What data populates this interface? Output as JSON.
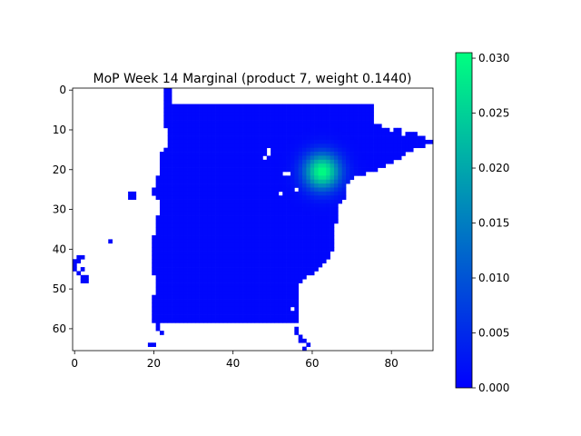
{
  "chart_data": {
    "type": "heatmap",
    "title": "MoP Week 14 Marginal (product 7, weight 0.1440)",
    "xlabel": "",
    "ylabel": "",
    "x_range": [
      -0.5,
      90.5
    ],
    "y_range": [
      65.5,
      -0.5
    ],
    "x_ticks": [
      0,
      20,
      40,
      60,
      80
    ],
    "y_ticks": [
      0,
      10,
      20,
      30,
      40,
      50,
      60
    ],
    "colormap": "winter",
    "colormap_low": "#0000ff",
    "colormap_high": "#00ff80",
    "missing_color": "#ffffff",
    "value_range": [
      0.0,
      0.0305
    ],
    "colorbar_ticks": [
      "0.000",
      "0.005",
      "0.010",
      "0.015",
      "0.020",
      "0.025",
      "0.030"
    ],
    "colorbar_tick_values": [
      0.0,
      0.005,
      0.01,
      0.015,
      0.02,
      0.025,
      0.03
    ],
    "grid": false,
    "background_value": 0.0008,
    "main_region_rows": [
      [
        4,
        23,
        75
      ],
      [
        5,
        23,
        75
      ],
      [
        6,
        23,
        75
      ],
      [
        7,
        23,
        75
      ],
      [
        8,
        23,
        75
      ],
      [
        9,
        23,
        77
      ],
      [
        10,
        24,
        82
      ],
      [
        11,
        24,
        86
      ],
      [
        12,
        24,
        88
      ],
      [
        13,
        24,
        90
      ],
      [
        14,
        24,
        88
      ],
      [
        15,
        23,
        85
      ],
      [
        16,
        22,
        83
      ],
      [
        17,
        22,
        82
      ],
      [
        18,
        22,
        80
      ],
      [
        19,
        22,
        78
      ],
      [
        20,
        22,
        76
      ],
      [
        21,
        22,
        73
      ],
      [
        22,
        21,
        70
      ],
      [
        23,
        21,
        69
      ],
      [
        24,
        21,
        68
      ],
      [
        25,
        20,
        68
      ],
      [
        26,
        20,
        68
      ],
      [
        27,
        21,
        68
      ],
      [
        28,
        22,
        67
      ],
      [
        29,
        22,
        66
      ],
      [
        30,
        22,
        66
      ],
      [
        31,
        22,
        66
      ],
      [
        32,
        21,
        66
      ],
      [
        33,
        21,
        66
      ],
      [
        34,
        21,
        65
      ],
      [
        35,
        21,
        65
      ],
      [
        36,
        21,
        65
      ],
      [
        37,
        20,
        65
      ],
      [
        38,
        20,
        65
      ],
      [
        39,
        20,
        65
      ],
      [
        40,
        20,
        65
      ],
      [
        41,
        20,
        64
      ],
      [
        42,
        20,
        64
      ],
      [
        43,
        20,
        63
      ],
      [
        44,
        20,
        62
      ],
      [
        45,
        20,
        61
      ],
      [
        46,
        20,
        60
      ],
      [
        47,
        21,
        58
      ],
      [
        48,
        21,
        57
      ],
      [
        49,
        21,
        56
      ],
      [
        50,
        21,
        56
      ],
      [
        51,
        21,
        56
      ],
      [
        52,
        20,
        56
      ],
      [
        53,
        20,
        56
      ],
      [
        54,
        20,
        56
      ],
      [
        55,
        20,
        56
      ],
      [
        56,
        20,
        56
      ],
      [
        57,
        20,
        56
      ],
      [
        58,
        20,
        56
      ]
    ],
    "top_extension_rows": [
      [
        3,
        23,
        24
      ],
      [
        2,
        23,
        24
      ],
      [
        1,
        23,
        24
      ],
      [
        0,
        23,
        24
      ]
    ],
    "hotspot": {
      "row": 20.5,
      "col": 62.5,
      "peak": 0.0305,
      "radius": 3.2
    },
    "outlier_cells": [
      [
        26,
        14
      ],
      [
        26,
        15
      ],
      [
        27,
        14
      ],
      [
        27,
        15
      ],
      [
        38,
        9
      ],
      [
        42,
        1
      ],
      [
        42,
        2
      ],
      [
        43,
        0
      ],
      [
        43,
        1
      ],
      [
        44,
        0
      ],
      [
        45,
        0
      ],
      [
        45,
        2
      ],
      [
        46,
        1
      ],
      [
        47,
        2
      ],
      [
        47,
        3
      ],
      [
        48,
        2
      ],
      [
        48,
        3
      ],
      [
        59,
        21
      ],
      [
        60,
        21
      ],
      [
        61,
        22
      ],
      [
        60,
        56
      ],
      [
        61,
        56
      ],
      [
        62,
        57
      ],
      [
        63,
        57
      ],
      [
        63,
        58
      ],
      [
        64,
        59
      ],
      [
        65,
        58
      ],
      [
        64,
        20
      ],
      [
        64,
        19
      ]
    ],
    "hole_cells": [
      [
        9,
        80
      ],
      [
        9,
        81
      ],
      [
        10,
        80
      ],
      [
        11,
        83
      ],
      [
        15,
        49
      ],
      [
        16,
        49
      ],
      [
        17,
        48
      ],
      [
        21,
        54
      ],
      [
        21,
        53
      ],
      [
        25,
        56
      ],
      [
        26,
        52
      ],
      [
        47,
        60
      ],
      [
        46,
        62
      ],
      [
        51,
        59
      ],
      [
        55,
        55
      ]
    ]
  }
}
